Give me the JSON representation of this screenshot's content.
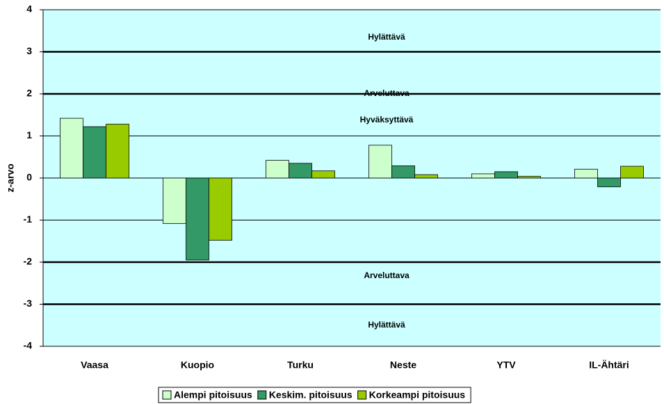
{
  "chart_data": {
    "type": "bar",
    "y_label": "z-arvo",
    "categories": [
      "Vaasa",
      "Kuopio",
      "Turku",
      "Neste",
      "YTV",
      "IL-Ähtäri"
    ],
    "series": [
      {
        "name": "Alempi pitoisuus",
        "color": "#ccffcc",
        "values": [
          1.42,
          -1.08,
          0.42,
          0.78,
          0.1,
          0.21
        ]
      },
      {
        "name": "Keskim. pitoisuus",
        "color": "#339966",
        "values": [
          1.22,
          -1.95,
          0.35,
          0.29,
          0.15,
          -0.21
        ]
      },
      {
        "name": "Korkeampi pitoisuus",
        "color": "#99cc00",
        "values": [
          1.28,
          -1.48,
          0.17,
          0.08,
          0.04,
          0.28
        ]
      }
    ],
    "annotations": [
      "Hylättävä",
      "Arveluttava",
      "Hyväksyttävä",
      "Arveluttava",
      "Hylättävä"
    ],
    "ylim": [
      -4,
      4
    ],
    "yticks": [
      -4,
      -3,
      -2,
      -1,
      0,
      1,
      2,
      3,
      4
    ],
    "thick_lines": [
      -3,
      -2,
      2,
      3
    ],
    "grid": true,
    "background": "#ccffff",
    "legend": "bottom"
  }
}
